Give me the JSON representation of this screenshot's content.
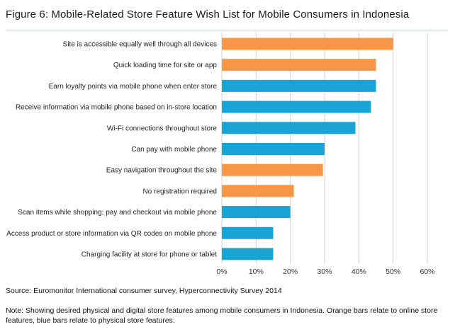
{
  "header": {
    "title": "Figure 6: Mobile-Related Store Feature Wish List for Mobile Consumers in Indonesia"
  },
  "footer": {
    "source": "Source: Euromonitor International consumer survey, Hyperconnectivity Survey 2014",
    "note": "Note: Showing desired physical and digital store features among mobile consumers in Indonesia. Orange bars relate to online store features, blue bars relate to physical store features."
  },
  "colors": {
    "online": "#f79646",
    "physical": "#1aa4d6",
    "grid": "#d0d0d0",
    "divider": "#c9d3da"
  },
  "chart_data": {
    "type": "bar",
    "orientation": "horizontal",
    "title": "",
    "xlabel": "",
    "ylabel": "",
    "xlim": [
      0,
      60
    ],
    "ticks": [
      "0%",
      "10%",
      "20%",
      "30%",
      "40%",
      "50%",
      "60%"
    ],
    "grid": true,
    "legend": "none",
    "categories": [
      "Site is accessible equally well through all devices",
      "Quick loading time for site or app",
      "Earn loyalty points via mobile phone when enter store",
      "Receive information via mobile phone based on in-store location",
      "Wi-Fi connections throughout store",
      "Can pay with mobile phone",
      "Easy navigation throughout the site",
      "No registration required",
      "Scan items while shopping; pay and checkout via mobile phone",
      "Access product or store information via QR codes on mobile phone",
      "Charging facility at store for phone or tablet"
    ],
    "values": [
      50,
      45,
      45,
      43.5,
      39,
      30,
      29.5,
      21,
      20,
      15,
      15
    ],
    "bar_types": [
      "online",
      "online",
      "physical",
      "physical",
      "physical",
      "physical",
      "online",
      "online",
      "physical",
      "physical",
      "physical"
    ]
  }
}
